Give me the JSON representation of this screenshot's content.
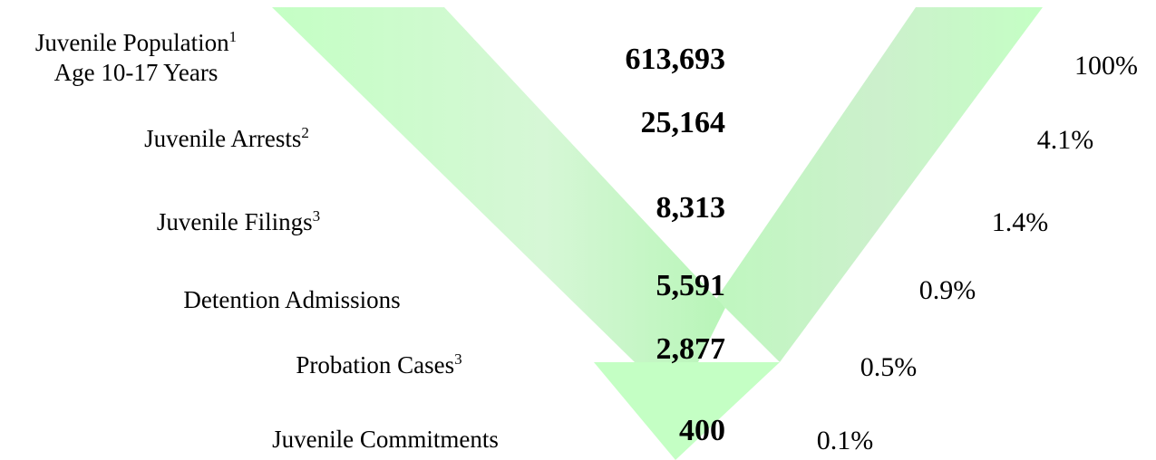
{
  "rows": [
    {
      "label": "Juvenile Population",
      "sup": "1",
      "label_line2": "Age 10-17 Years",
      "count": "613,693",
      "percent": "100%"
    },
    {
      "label": "Juvenile Arrests",
      "sup": "2",
      "count": "25,164",
      "percent": "4.1%"
    },
    {
      "label": "Juvenile Filings",
      "sup": "3",
      "count": "8,313",
      "percent": "1.4%"
    },
    {
      "label": "Detention Admissions",
      "count": "5,591",
      "percent": "0.9%"
    },
    {
      "label": "Probation Cases",
      "sup": "3",
      "count": "2,877",
      "percent": "0.5%"
    },
    {
      "label": "Juvenile Commitments",
      "count": "400",
      "percent": "0.1%"
    }
  ]
}
